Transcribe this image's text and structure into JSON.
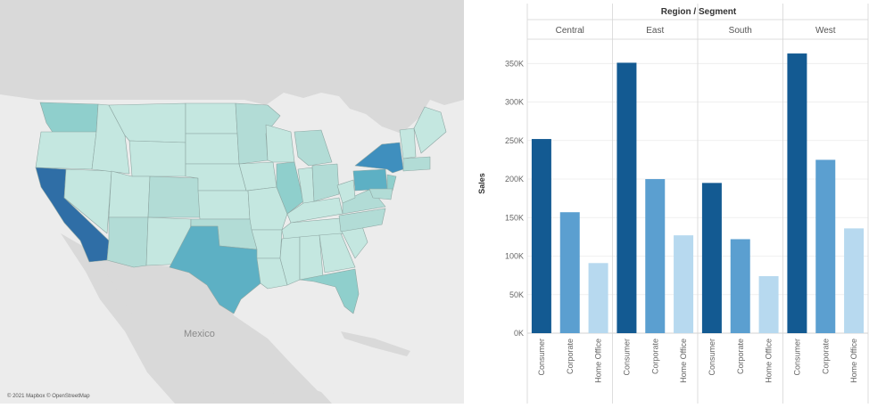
{
  "map": {
    "country_label": "Mexico",
    "attribution": "© 2021 Mapbox © OpenStreetMap",
    "palette": {
      "land": "#d7d7d7",
      "water": "#ececec",
      "lightest": "#c4e7e0",
      "light": "#b2dcd6",
      "mid": "#8fcfcc",
      "strong": "#5db0c4",
      "stronger": "#3f8fbe",
      "darkest": "#2f6ea6"
    }
  },
  "chart_data": {
    "type": "bar",
    "title": "Region / Segment",
    "ylabel": "Sales",
    "ylim": [
      0,
      370000
    ],
    "yticks": [
      "0K",
      "50K",
      "100K",
      "150K",
      "200K",
      "250K",
      "300K",
      "350K"
    ],
    "ytick_values": [
      0,
      50000,
      100000,
      150000,
      200000,
      250000,
      300000,
      350000
    ],
    "regions": [
      {
        "name": "Central",
        "segments": [
          {
            "name": "Consumer",
            "value": 252000
          },
          {
            "name": "Corporate",
            "value": 157000
          },
          {
            "name": "Home Office",
            "value": 91000
          }
        ]
      },
      {
        "name": "East",
        "segments": [
          {
            "name": "Consumer",
            "value": 351000
          },
          {
            "name": "Corporate",
            "value": 200000
          },
          {
            "name": "Home Office",
            "value": 127000
          }
        ]
      },
      {
        "name": "South",
        "segments": [
          {
            "name": "Consumer",
            "value": 195000
          },
          {
            "name": "Corporate",
            "value": 122000
          },
          {
            "name": "Home Office",
            "value": 74000
          }
        ]
      },
      {
        "name": "West",
        "segments": [
          {
            "name": "Consumer",
            "value": 363000
          },
          {
            "name": "Corporate",
            "value": 225000
          },
          {
            "name": "Home Office",
            "value": 136000
          }
        ]
      }
    ],
    "color_scale": [
      "#b7d9ef",
      "#5b9fd0",
      "#135a92"
    ]
  }
}
